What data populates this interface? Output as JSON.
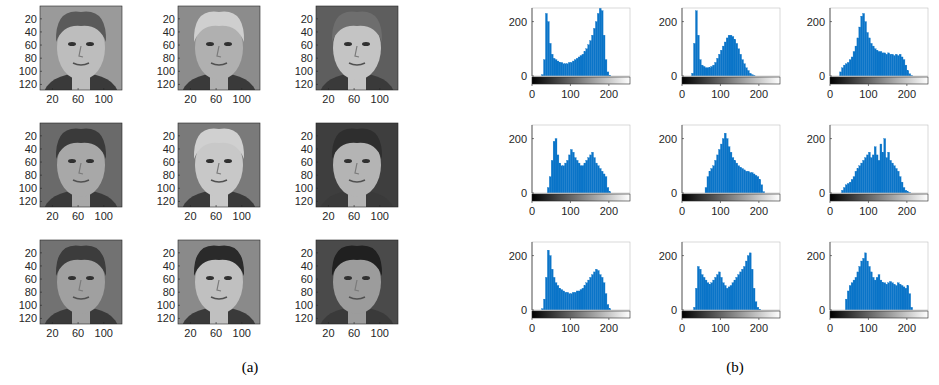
{
  "chart_data": [
    {
      "type": "image",
      "xlim": [
        0.5,
        128.5
      ],
      "ylim": [
        0.5,
        128.5
      ],
      "xticks": [
        20,
        60,
        100
      ],
      "yticks": [
        20,
        40,
        60,
        80,
        100,
        120
      ]
    },
    {
      "type": "image",
      "xlim": [
        0.5,
        128.5
      ],
      "ylim": [
        0.5,
        128.5
      ],
      "xticks": [
        20,
        60,
        100
      ],
      "yticks": [
        20,
        40,
        60,
        80,
        100,
        120
      ]
    },
    {
      "type": "image",
      "xlim": [
        0.5,
        128.5
      ],
      "ylim": [
        0.5,
        128.5
      ],
      "xticks": [
        20,
        60,
        100
      ],
      "yticks": [
        20,
        40,
        60,
        80,
        100,
        120
      ]
    },
    {
      "type": "image",
      "xlim": [
        0.5,
        128.5
      ],
      "ylim": [
        0.5,
        128.5
      ],
      "xticks": [
        20,
        60,
        100
      ],
      "yticks": [
        20,
        40,
        60,
        80,
        100,
        120
      ]
    },
    {
      "type": "image",
      "xlim": [
        0.5,
        128.5
      ],
      "ylim": [
        0.5,
        128.5
      ],
      "xticks": [
        20,
        60,
        100
      ],
      "yticks": [
        20,
        40,
        60,
        80,
        100,
        120
      ]
    },
    {
      "type": "image",
      "xlim": [
        0.5,
        128.5
      ],
      "ylim": [
        0.5,
        128.5
      ],
      "xticks": [
        20,
        60,
        100
      ],
      "yticks": [
        20,
        40,
        60,
        80,
        100,
        120
      ]
    },
    {
      "type": "image",
      "xlim": [
        0.5,
        128.5
      ],
      "ylim": [
        0.5,
        128.5
      ],
      "xticks": [
        20,
        60,
        100
      ],
      "yticks": [
        20,
        40,
        60,
        80,
        100,
        120
      ]
    },
    {
      "type": "image",
      "xlim": [
        0.5,
        128.5
      ],
      "ylim": [
        0.5,
        128.5
      ],
      "xticks": [
        20,
        60,
        100
      ],
      "yticks": [
        20,
        40,
        60,
        80,
        100,
        120
      ]
    },
    {
      "type": "image",
      "xlim": [
        0.5,
        128.5
      ],
      "ylim": [
        0.5,
        128.5
      ],
      "xticks": [
        20,
        60,
        100
      ],
      "yticks": [
        20,
        40,
        60,
        80,
        100,
        120
      ]
    },
    {
      "type": "histogram",
      "color": "#0a74c8",
      "xlim": [
        0,
        255
      ],
      "ylim": [
        0,
        250
      ],
      "xticks": [
        0,
        100,
        200
      ],
      "yticks": [
        0,
        200
      ],
      "bins": [
        0,
        5,
        10,
        15,
        20,
        25,
        30,
        35,
        40,
        45,
        50,
        55,
        60,
        65,
        70,
        75,
        80,
        85,
        90,
        95,
        100,
        105,
        110,
        115,
        120,
        125,
        130,
        135,
        140,
        145,
        150,
        155,
        160,
        165,
        170,
        175,
        180,
        185,
        190,
        195,
        200,
        205,
        210,
        215,
        220,
        225,
        230,
        235,
        240,
        245,
        250,
        255
      ],
      "values": [
        0,
        0,
        0,
        0,
        0,
        5,
        60,
        230,
        200,
        120,
        80,
        65,
        60,
        55,
        50,
        50,
        45,
        45,
        45,
        50,
        50,
        55,
        60,
        65,
        70,
        75,
        80,
        90,
        100,
        115,
        130,
        150,
        175,
        200,
        230,
        250,
        240,
        150,
        60,
        15,
        3,
        0,
        0,
        0,
        0,
        0,
        0,
        0,
        0,
        0,
        0
      ]
    },
    {
      "type": "histogram",
      "color": "#0a74c8",
      "xlim": [
        0,
        255
      ],
      "ylim": [
        0,
        250
      ],
      "xticks": [
        0,
        100,
        200
      ],
      "yticks": [
        0,
        200
      ],
      "bins": [
        0,
        5,
        10,
        15,
        20,
        25,
        30,
        35,
        40,
        45,
        50,
        55,
        60,
        65,
        70,
        75,
        80,
        85,
        90,
        95,
        100,
        105,
        110,
        115,
        120,
        125,
        130,
        135,
        140,
        145,
        150,
        155,
        160,
        165,
        170,
        175,
        180,
        185,
        190,
        195,
        200,
        205,
        210,
        215,
        220,
        225,
        230,
        235,
        240,
        245,
        250,
        255
      ],
      "values": [
        0,
        0,
        0,
        0,
        0,
        10,
        120,
        240,
        150,
        60,
        40,
        35,
        30,
        30,
        30,
        35,
        40,
        50,
        65,
        80,
        95,
        110,
        125,
        140,
        150,
        150,
        145,
        135,
        120,
        100,
        80,
        60,
        45,
        30,
        20,
        10,
        5,
        2,
        0,
        0,
        0,
        0,
        0,
        0,
        0,
        0,
        0,
        0,
        0,
        0,
        0
      ]
    },
    {
      "type": "histogram",
      "color": "#0a74c8",
      "xlim": [
        0,
        255
      ],
      "ylim": [
        0,
        250
      ],
      "xticks": [
        0,
        100,
        200
      ],
      "yticks": [
        0,
        200
      ],
      "bins": [
        0,
        5,
        10,
        15,
        20,
        25,
        30,
        35,
        40,
        45,
        50,
        55,
        60,
        65,
        70,
        75,
        80,
        85,
        90,
        95,
        100,
        105,
        110,
        115,
        120,
        125,
        130,
        135,
        140,
        145,
        150,
        155,
        160,
        165,
        170,
        175,
        180,
        185,
        190,
        195,
        200,
        205,
        210,
        215,
        220,
        225,
        230,
        235,
        240,
        245,
        250,
        255
      ],
      "values": [
        0,
        0,
        0,
        0,
        0,
        15,
        30,
        40,
        45,
        50,
        60,
        70,
        90,
        110,
        140,
        180,
        220,
        230,
        200,
        160,
        140,
        120,
        110,
        100,
        95,
        90,
        90,
        85,
        85,
        80,
        85,
        80,
        80,
        75,
        80,
        75,
        80,
        70,
        60,
        40,
        20,
        8,
        2,
        0,
        0,
        0,
        0,
        0,
        0,
        0,
        0
      ]
    },
    {
      "type": "histogram",
      "color": "#0a74c8",
      "xlim": [
        0,
        255
      ],
      "ylim": [
        0,
        250
      ],
      "xticks": [
        0,
        100,
        200
      ],
      "yticks": [
        0,
        200
      ],
      "bins": [
        0,
        5,
        10,
        15,
        20,
        25,
        30,
        35,
        40,
        45,
        50,
        55,
        60,
        65,
        70,
        75,
        80,
        85,
        90,
        95,
        100,
        105,
        110,
        115,
        120,
        125,
        130,
        135,
        140,
        145,
        150,
        155,
        160,
        165,
        170,
        175,
        180,
        185,
        190,
        195,
        200,
        205,
        210,
        215,
        220,
        225,
        230,
        235,
        240,
        245,
        250,
        255
      ],
      "values": [
        0,
        0,
        0,
        0,
        0,
        0,
        0,
        0,
        20,
        60,
        120,
        190,
        200,
        140,
        110,
        100,
        100,
        110,
        120,
        140,
        160,
        150,
        130,
        120,
        110,
        100,
        100,
        110,
        120,
        130,
        140,
        150,
        130,
        110,
        100,
        90,
        80,
        70,
        60,
        20,
        5,
        0,
        0,
        0,
        0,
        0,
        0,
        0,
        0,
        0,
        0
      ]
    },
    {
      "type": "histogram",
      "color": "#0a74c8",
      "xlim": [
        0,
        255
      ],
      "ylim": [
        0,
        250
      ],
      "xticks": [
        0,
        100,
        200
      ],
      "yticks": [
        0,
        200
      ],
      "bins": [
        0,
        5,
        10,
        15,
        20,
        25,
        30,
        35,
        40,
        45,
        50,
        55,
        60,
        65,
        70,
        75,
        80,
        85,
        90,
        95,
        100,
        105,
        110,
        115,
        120,
        125,
        130,
        135,
        140,
        145,
        150,
        155,
        160,
        165,
        170,
        175,
        180,
        185,
        190,
        195,
        200,
        205,
        210,
        215,
        220,
        225,
        230,
        235,
        240,
        245,
        250,
        255
      ],
      "values": [
        0,
        0,
        0,
        0,
        0,
        0,
        0,
        0,
        0,
        0,
        0,
        0,
        20,
        60,
        80,
        90,
        100,
        120,
        140,
        160,
        180,
        200,
        220,
        200,
        170,
        150,
        130,
        120,
        110,
        100,
        95,
        90,
        85,
        80,
        80,
        75,
        75,
        70,
        65,
        60,
        50,
        30,
        5,
        0,
        0,
        0,
        0,
        0,
        0,
        0,
        0
      ]
    },
    {
      "type": "histogram",
      "color": "#0a74c8",
      "xlim": [
        0,
        255
      ],
      "ylim": [
        0,
        250
      ],
      "xticks": [
        0,
        100,
        200
      ],
      "yticks": [
        0,
        200
      ],
      "bins": [
        0,
        5,
        10,
        15,
        20,
        25,
        30,
        35,
        40,
        45,
        50,
        55,
        60,
        65,
        70,
        75,
        80,
        85,
        90,
        95,
        100,
        105,
        110,
        115,
        120,
        125,
        130,
        135,
        140,
        145,
        150,
        155,
        160,
        165,
        170,
        175,
        180,
        185,
        190,
        195,
        200,
        205,
        210,
        215,
        220,
        225,
        230,
        235,
        240,
        245,
        250,
        255
      ],
      "values": [
        0,
        0,
        0,
        0,
        0,
        0,
        10,
        20,
        30,
        35,
        40,
        50,
        60,
        80,
        90,
        100,
        110,
        120,
        130,
        140,
        150,
        130,
        140,
        170,
        140,
        120,
        180,
        150,
        200,
        130,
        150,
        120,
        110,
        100,
        90,
        80,
        60,
        40,
        20,
        10,
        5,
        2,
        0,
        0,
        0,
        0,
        0,
        0,
        0,
        0,
        0
      ]
    },
    {
      "type": "histogram",
      "color": "#0a74c8",
      "xlim": [
        0,
        255
      ],
      "ylim": [
        0,
        250
      ],
      "xticks": [
        0,
        100,
        200
      ],
      "yticks": [
        0,
        200
      ],
      "bins": [
        0,
        5,
        10,
        15,
        20,
        25,
        30,
        35,
        40,
        45,
        50,
        55,
        60,
        65,
        70,
        75,
        80,
        85,
        90,
        95,
        100,
        105,
        110,
        115,
        120,
        125,
        130,
        135,
        140,
        145,
        150,
        155,
        160,
        165,
        170,
        175,
        180,
        185,
        190,
        195,
        200,
        205,
        210,
        215,
        220,
        225,
        230,
        235,
        240,
        245,
        250,
        255
      ],
      "values": [
        0,
        0,
        0,
        0,
        0,
        5,
        40,
        120,
        220,
        200,
        150,
        120,
        100,
        90,
        80,
        75,
        70,
        65,
        65,
        60,
        60,
        65,
        65,
        70,
        70,
        75,
        80,
        90,
        100,
        110,
        120,
        130,
        140,
        150,
        145,
        130,
        120,
        100,
        60,
        20,
        5,
        0,
        0,
        0,
        0,
        0,
        0,
        0,
        0,
        0,
        0
      ]
    },
    {
      "type": "histogram",
      "color": "#0a74c8",
      "xlim": [
        0,
        255
      ],
      "ylim": [
        0,
        250
      ],
      "xticks": [
        0,
        100,
        200
      ],
      "yticks": [
        0,
        200
      ],
      "bins": [
        0,
        5,
        10,
        15,
        20,
        25,
        30,
        35,
        40,
        45,
        50,
        55,
        60,
        65,
        70,
        75,
        80,
        85,
        90,
        95,
        100,
        105,
        110,
        115,
        120,
        125,
        130,
        135,
        140,
        145,
        150,
        155,
        160,
        165,
        170,
        175,
        180,
        185,
        190,
        195,
        200,
        205,
        210,
        215,
        220,
        225,
        230,
        235,
        240,
        245,
        250,
        255
      ],
      "values": [
        0,
        0,
        0,
        0,
        0,
        0,
        10,
        80,
        160,
        150,
        130,
        120,
        110,
        100,
        95,
        100,
        110,
        120,
        130,
        140,
        120,
        100,
        90,
        80,
        85,
        90,
        100,
        110,
        120,
        130,
        140,
        150,
        160,
        180,
        200,
        210,
        150,
        80,
        30,
        10,
        3,
        0,
        0,
        0,
        0,
        0,
        0,
        0,
        0,
        0,
        0
      ]
    },
    {
      "type": "histogram",
      "color": "#0a74c8",
      "xlim": [
        0,
        255
      ],
      "ylim": [
        0,
        250
      ],
      "xticks": [
        0,
        100,
        200
      ],
      "yticks": [
        0,
        200
      ],
      "bins": [
        0,
        5,
        10,
        15,
        20,
        25,
        30,
        35,
        40,
        45,
        50,
        55,
        60,
        65,
        70,
        75,
        80,
        85,
        90,
        95,
        100,
        105,
        110,
        115,
        120,
        125,
        130,
        135,
        140,
        145,
        150,
        155,
        160,
        165,
        170,
        175,
        180,
        185,
        190,
        195,
        200,
        205,
        210,
        215,
        220,
        225,
        230,
        235,
        240,
        245,
        250,
        255
      ],
      "values": [
        0,
        0,
        0,
        0,
        0,
        0,
        0,
        0,
        40,
        70,
        90,
        100,
        110,
        120,
        140,
        160,
        180,
        190,
        210,
        180,
        160,
        140,
        120,
        110,
        120,
        130,
        110,
        100,
        100,
        95,
        100,
        105,
        100,
        95,
        90,
        100,
        95,
        90,
        85,
        80,
        90,
        60,
        10,
        0,
        0,
        0,
        0,
        0,
        0,
        0,
        0
      ]
    }
  ],
  "captions": [
    "(a)",
    "(b)"
  ]
}
